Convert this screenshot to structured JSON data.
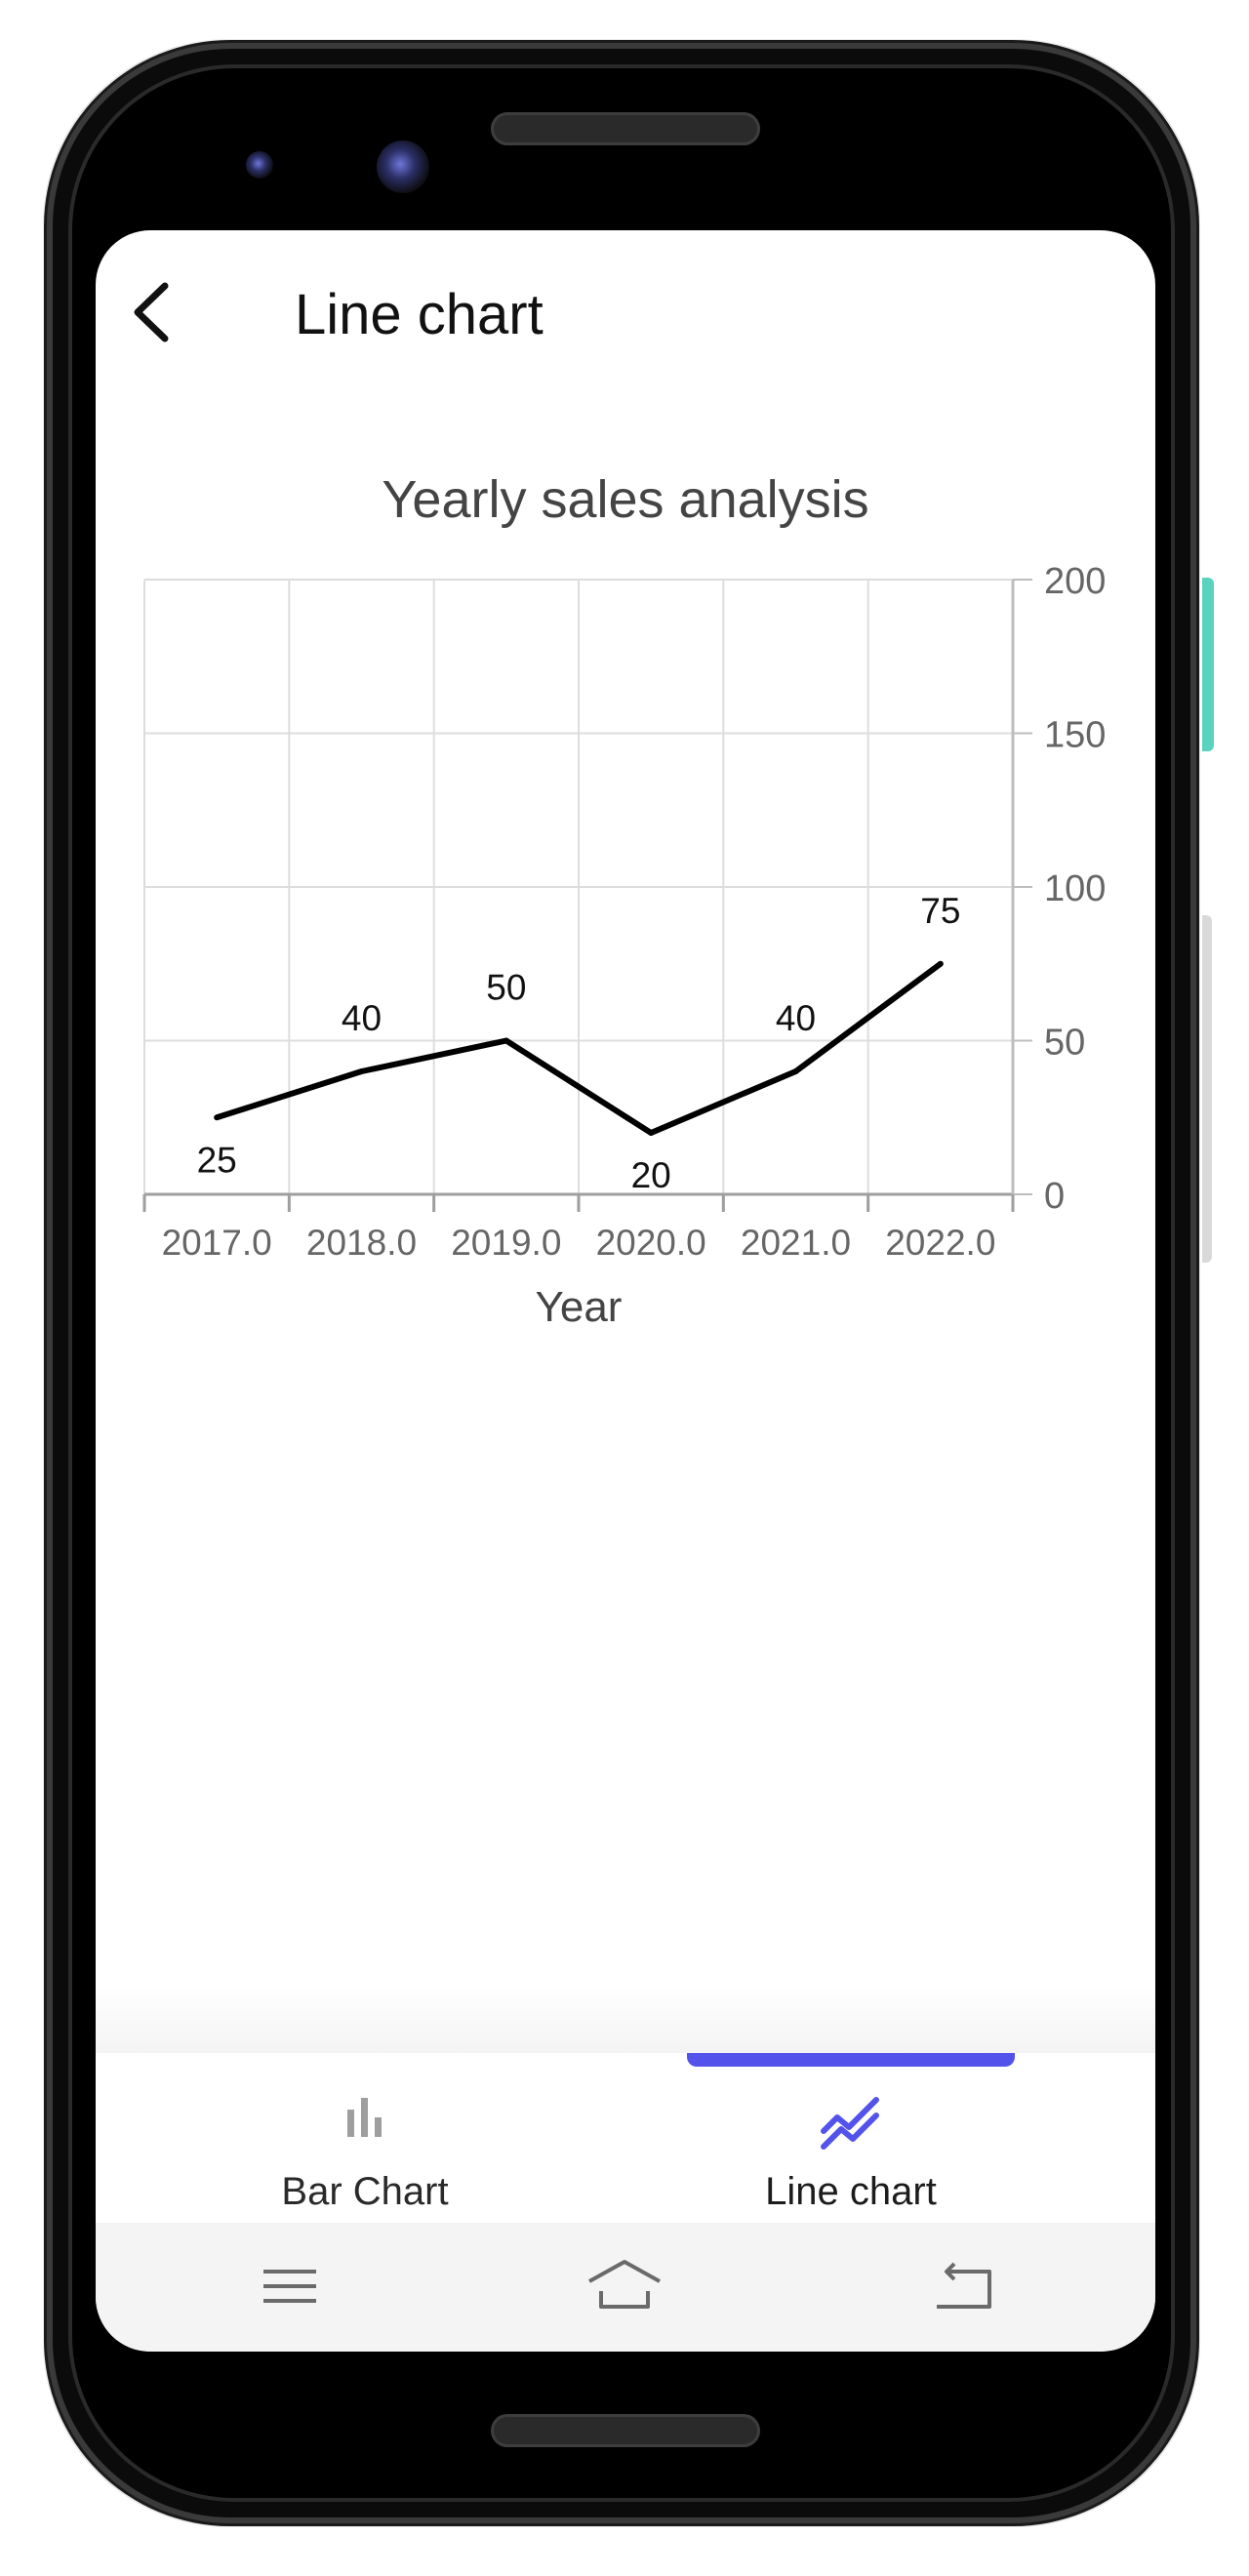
{
  "app": {
    "title": "Line chart",
    "back_icon": "chevron-left-icon"
  },
  "chart_data": {
    "type": "line",
    "title": "Yearly sales analysis",
    "xlabel": "Year",
    "ylabel": "",
    "x": [
      "2017.0",
      "2018.0",
      "2019.0",
      "2020.0",
      "2021.0",
      "2022.0"
    ],
    "series": [
      {
        "values": [
          25,
          40,
          50,
          20,
          40,
          75
        ],
        "color": "#000000"
      }
    ],
    "data_labels": [
      "25",
      "40",
      "50",
      "20",
      "40",
      "75"
    ],
    "ylim": [
      0,
      200
    ],
    "yticks": [
      "0",
      "50",
      "100",
      "150",
      "200"
    ],
    "y_axis_side": "right",
    "grid": true,
    "legend": "none"
  },
  "bottom_nav": {
    "items": [
      {
        "label": "Bar Chart",
        "icon": "bar-chart-icon",
        "active": false
      },
      {
        "label": "Line chart",
        "icon": "line-chart-icon",
        "active": true
      }
    ],
    "active_color": "#5352ea",
    "inactive_color": "#9e9e9e"
  },
  "system_nav": {
    "menu_icon": "menu-icon",
    "home_icon": "home-icon",
    "back_icon": "back-icon"
  }
}
